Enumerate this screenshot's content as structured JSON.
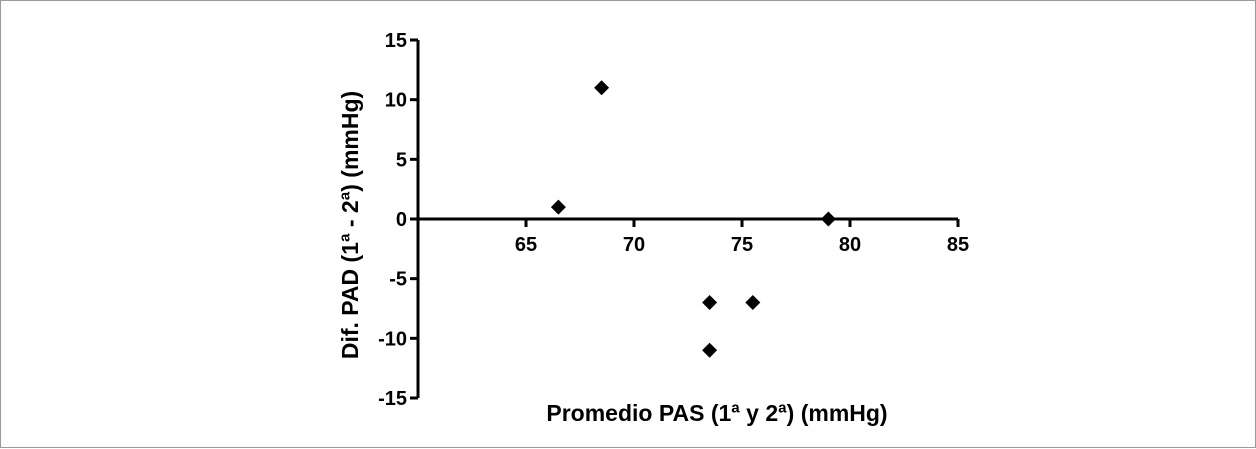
{
  "chart_data": {
    "type": "scatter",
    "xlabel": "Promedio PAS (1ª y 2ª) (mmHg)",
    "ylabel": "Dif. PAD (1ª - 2ª) (mmHg)",
    "xlim": [
      60,
      85
    ],
    "ylim": [
      -15,
      15
    ],
    "x_ticks": [
      65,
      70,
      75,
      80,
      85
    ],
    "x_tick_labels": [
      "65",
      "70",
      "75",
      "80",
      "85"
    ],
    "y_ticks": [
      15,
      10,
      5,
      0,
      -5,
      -10,
      -15
    ],
    "y_tick_labels": [
      "15",
      "10",
      "5",
      "0",
      "-5",
      "-10",
      "-15"
    ],
    "x_axis_crosses_at_y": 0,
    "marker": "diamond",
    "marker_color": "#000000",
    "grid": false,
    "points": [
      {
        "x": 66.5,
        "y": 1
      },
      {
        "x": 68.5,
        "y": 11
      },
      {
        "x": 73.5,
        "y": -7
      },
      {
        "x": 73.5,
        "y": -11
      },
      {
        "x": 75.5,
        "y": -7
      },
      {
        "x": 79.0,
        "y": 0
      }
    ]
  }
}
